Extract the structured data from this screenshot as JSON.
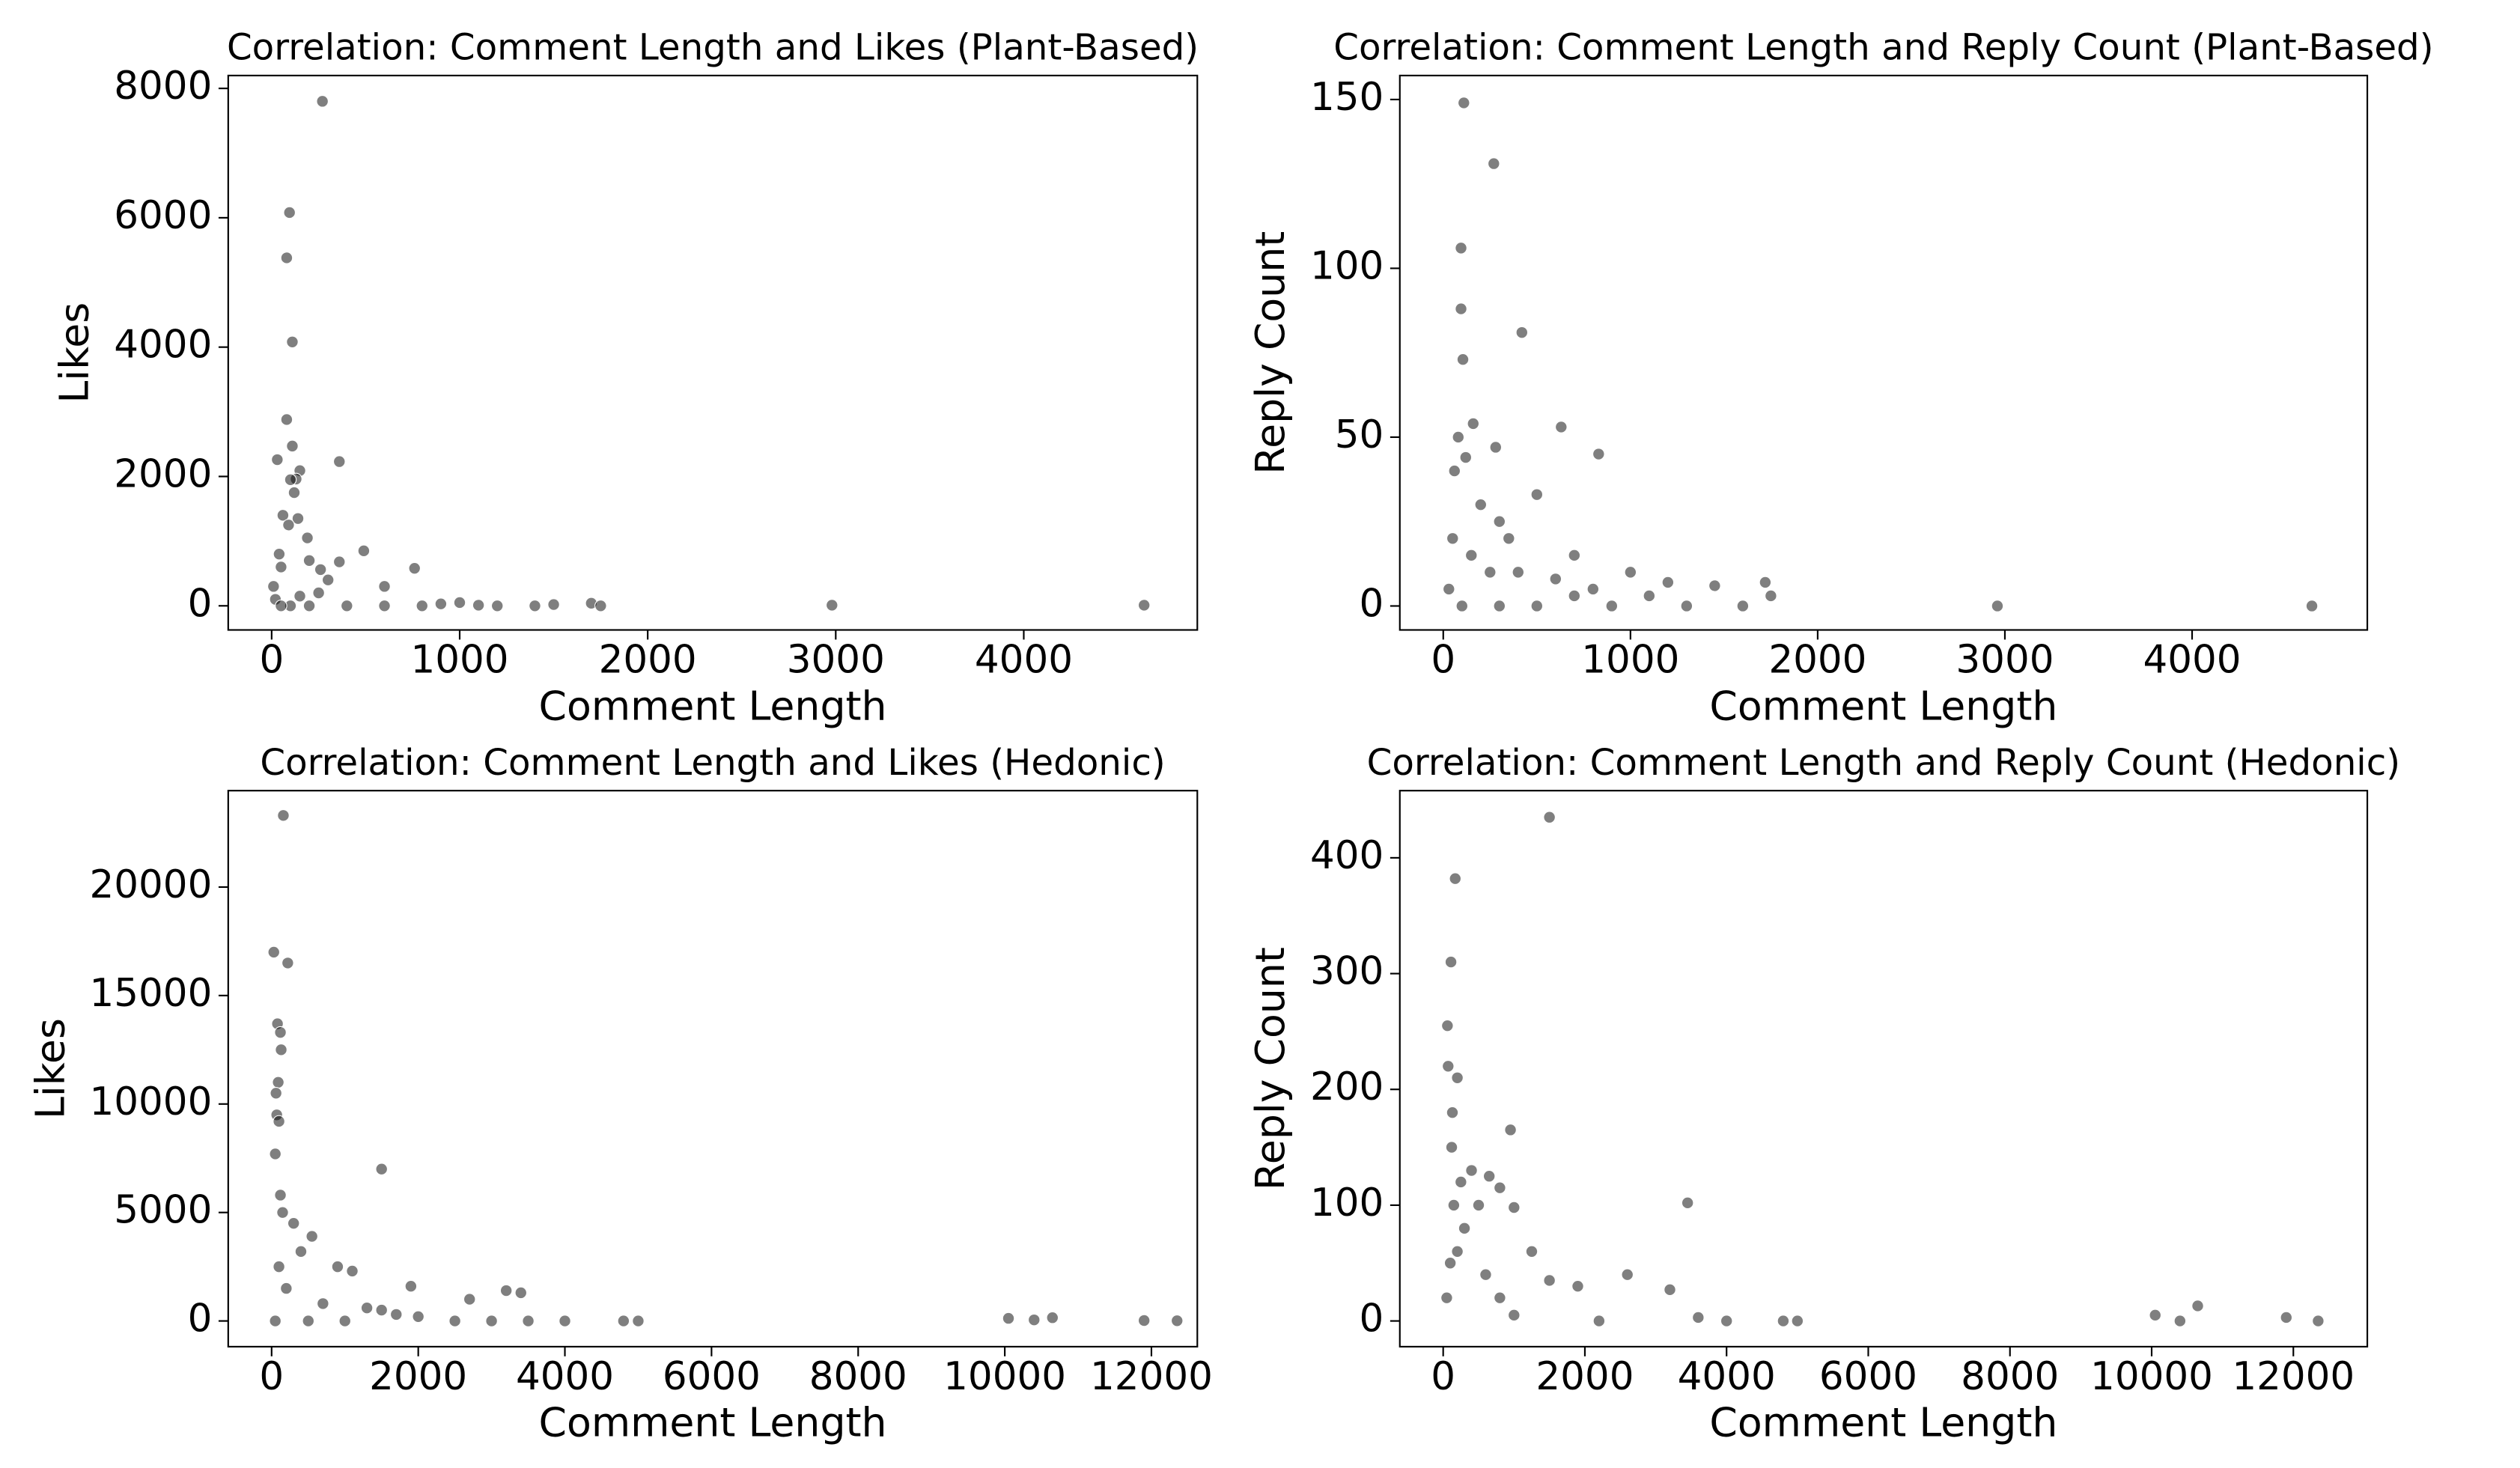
{
  "chart_data": [
    {
      "type": "scatter",
      "title": "Correlation: Comment Length and Likes (Plant-Based)",
      "x_label": "Comment Length",
      "y_label": "Likes",
      "color": "#000000",
      "x": [
        270,
        95,
        80,
        110,
        80,
        110,
        30,
        360,
        150,
        130,
        100,
        120,
        60,
        140,
        90,
        190,
        490,
        40,
        760,
        360,
        260,
        200,
        50,
        300,
        600,
        1000,
        1500,
        1700,
        2980,
        4640,
        10,
        20,
        100,
        200,
        400,
        800,
        1200,
        1400,
        1750,
        600,
        50,
        150,
        250,
        900,
        1100
      ],
      "values": [
        7800,
        6080,
        5380,
        4080,
        2880,
        2470,
        2260,
        2230,
        2090,
        1960,
        1950,
        1750,
        1400,
        1350,
        1250,
        1050,
        850,
        800,
        580,
        680,
        560,
        700,
        600,
        400,
        300,
        50,
        20,
        40,
        10,
        10,
        300,
        100,
        0,
        0,
        0,
        0,
        0,
        0,
        0,
        0,
        0,
        150,
        200,
        30,
        10
      ],
      "xlim": [
        -231,
        4923
      ],
      "ylim": [
        -373,
        8199
      ],
      "xticks": [
        0,
        1000,
        2000,
        3000,
        4000
      ],
      "yticks": [
        0,
        2000,
        4000,
        6000,
        8000
      ]
    },
    {
      "type": "scatter",
      "title": "Correlation: Comment Length and Reply Count (Plant-Based)",
      "x_label": "Comment Length",
      "y_label": "Reply Count",
      "color": "#000000",
      "x": [
        110,
        270,
        95,
        95,
        105,
        420,
        630,
        830,
        160,
        80,
        280,
        120,
        60,
        500,
        200,
        300,
        700,
        1000,
        1200,
        1450,
        1720,
        1750,
        2960,
        4640,
        50,
        150,
        400,
        600,
        800,
        30,
        100,
        300,
        500,
        900,
        1300,
        1600,
        1100,
        250,
        350,
        700
      ],
      "values": [
        149,
        131,
        106,
        88,
        73,
        81,
        53,
        45,
        54,
        50,
        47,
        44,
        40,
        33,
        30,
        25,
        15,
        10,
        7,
        6,
        7,
        3,
        0,
        0,
        20,
        15,
        10,
        8,
        5,
        5,
        0,
        0,
        0,
        0,
        0,
        0,
        3,
        10,
        20,
        3
      ],
      "xlim": [
        -232,
        4936
      ],
      "ylim": [
        -7.1,
        157.1
      ],
      "xticks": [
        0,
        1000,
        2000,
        3000,
        4000
      ],
      "yticks": [
        0,
        50,
        100,
        150
      ]
    },
    {
      "type": "scatter",
      "title": "Correlation: Comment Length and Likes (Hedonic)",
      "x_label": "Comment Length",
      "y_label": "Likes",
      "color": "#000000",
      "x": [
        160,
        30,
        220,
        80,
        120,
        130,
        90,
        60,
        70,
        100,
        50,
        1500,
        120,
        150,
        300,
        550,
        400,
        900,
        1100,
        1900,
        3200,
        3400,
        2700,
        1500,
        2000,
        10050,
        10400,
        10650,
        11900,
        12350,
        4000,
        4800,
        5000,
        3500,
        3000,
        2500,
        1000,
        500,
        50,
        200,
        100,
        700,
        1300,
        1700
      ],
      "values": [
        23300,
        17000,
        16500,
        13700,
        13300,
        12500,
        11000,
        10500,
        9500,
        9200,
        7700,
        7000,
        5800,
        5000,
        4500,
        3900,
        3200,
        2500,
        2300,
        1600,
        1400,
        1300,
        1000,
        500,
        200,
        120,
        50,
        150,
        20,
        10,
        0,
        0,
        0,
        0,
        0,
        0,
        0,
        0,
        0,
        1500,
        2500,
        800,
        600,
        300
      ],
      "xlim": [
        -592,
        12626
      ],
      "ylim": [
        -1185,
        24444
      ],
      "xticks": [
        0,
        2000,
        4000,
        6000,
        8000,
        10000,
        12000
      ],
      "yticks": [
        0,
        5000,
        10000,
        15000,
        20000
      ]
    },
    {
      "type": "scatter",
      "title": "Correlation: Comment Length and Reply Count (Hedonic)",
      "x_label": "Comment Length",
      "y_label": "Reply Count",
      "color": "#000000",
      "x": [
        1500,
        170,
        110,
        60,
        70,
        200,
        130,
        950,
        120,
        400,
        650,
        800,
        500,
        1000,
        3450,
        1250,
        2600,
        3200,
        1500,
        1900,
        300,
        200,
        100,
        600,
        800,
        10050,
        10650,
        10400,
        11900,
        12350,
        4000,
        4800,
        5000,
        3600,
        2200,
        1000,
        50,
        150,
        250
      ],
      "values": [
        435,
        382,
        310,
        255,
        220,
        210,
        180,
        165,
        150,
        130,
        125,
        115,
        100,
        98,
        102,
        60,
        40,
        27,
        35,
        30,
        80,
        60,
        50,
        40,
        20,
        5,
        13,
        0,
        3,
        0,
        0,
        0,
        0,
        3,
        0,
        5,
        20,
        100,
        120
      ],
      "xlim": [
        -612,
        13044
      ],
      "ylim": [
        -22.2,
        458
      ],
      "xticks": [
        0,
        2000,
        4000,
        6000,
        8000,
        10000,
        12000
      ],
      "yticks": [
        0,
        100,
        200,
        300,
        400
      ]
    }
  ]
}
